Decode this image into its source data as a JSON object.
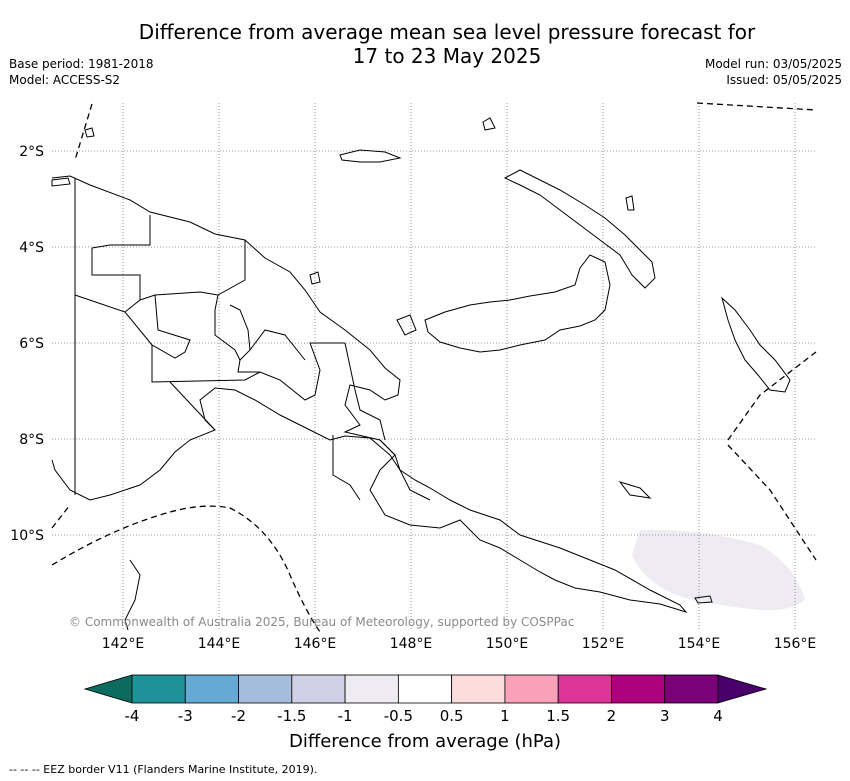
{
  "title_line1": "Difference from average mean sea level pressure forecast for",
  "title_line2": "17 to 23 May 2025",
  "meta_left": {
    "base_period": "Base period: 1981-2018",
    "model": "Model: ACCESS-S2"
  },
  "meta_right": {
    "model_run": "Model run: 03/05/2025",
    "issued": "Issued: 05/05/2025"
  },
  "map": {
    "lat_labels": [
      "2°S",
      "4°S",
      "6°S",
      "8°S",
      "10°S"
    ],
    "lon_labels": [
      "142°E",
      "144°E",
      "146°E",
      "148°E",
      "150°E",
      "152°E",
      "154°E",
      "156°E"
    ],
    "copyright": "© Commonwealth of Australia 2025, Bureau of Meteorology, supported by COSPPac",
    "anomaly_region_value_range": "-1 to -0.5"
  },
  "colorbar": {
    "label": "Difference from average (hPa)",
    "tick_labels": [
      "-4",
      "-3",
      "-2",
      "-1.5",
      "-1",
      "-0.5",
      "0.5",
      "1",
      "1.5",
      "2",
      "3",
      "4"
    ],
    "colors": [
      "#0b6b5e",
      "#1f9199",
      "#66aad4",
      "#a6bcdc",
      "#d0d1e6",
      "#efebf2",
      "#ffffff",
      "#fddcdc",
      "#f9a1b9",
      "#dd3497",
      "#ae017e",
      "#7a0177",
      "#49006a"
    ]
  },
  "footer": "--  --  -- EEZ border V11 (Flanders Marine Institute, 2019)."
}
